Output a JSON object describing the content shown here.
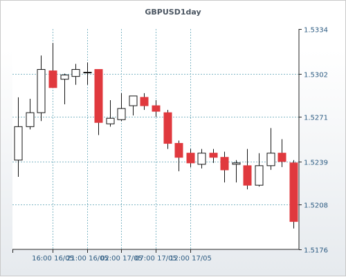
{
  "chart_data": {
    "type": "candlestick",
    "title": "GBPUSD1day",
    "x_tick_labels": [
      "16:00 16/05",
      "21:00 16/05",
      "02:00 17/05",
      "07:00 17/05",
      "12:00 17/05"
    ],
    "y_tick_labels": [
      "1.5334",
      "1.5302",
      "1.5271",
      "1.5239",
      "1.5208",
      "1.5176"
    ],
    "y_ticks": [
      1.5334,
      1.5302,
      1.5271,
      1.5239,
      1.5208,
      1.5176
    ],
    "ylim": [
      1.5176,
      1.5334
    ],
    "grid": true,
    "colors": {
      "up": "#ffffff",
      "down": "#e0393e",
      "wick": "#111111",
      "grid": "#7fb6c4",
      "axis": "#222222",
      "label": "#2c5b82",
      "title": "#4a5561"
    },
    "candles": [
      {
        "open": 1.524,
        "high": 1.5285,
        "low": 1.5228,
        "close": 1.5264
      },
      {
        "open": 1.5264,
        "high": 1.5284,
        "low": 1.5262,
        "close": 1.5274
      },
      {
        "open": 1.5274,
        "high": 1.5315,
        "low": 1.5268,
        "close": 1.5305
      },
      {
        "open": 1.5304,
        "high": 1.5324,
        "low": 1.5292,
        "close": 1.5292
      },
      {
        "open": 1.5298,
        "high": 1.5302,
        "low": 1.528,
        "close": 1.5301
      },
      {
        "open": 1.53,
        "high": 1.5309,
        "low": 1.5294,
        "close": 1.5305
      },
      {
        "open": 1.5303,
        "high": 1.531,
        "low": 1.5294,
        "close": 1.5303
      },
      {
        "open": 1.5305,
        "high": 1.5305,
        "low": 1.5258,
        "close": 1.5267
      },
      {
        "open": 1.5266,
        "high": 1.5283,
        "low": 1.5264,
        "close": 1.527
      },
      {
        "open": 1.5269,
        "high": 1.5288,
        "low": 1.5268,
        "close": 1.5277
      },
      {
        "open": 1.5279,
        "high": 1.5286,
        "low": 1.5272,
        "close": 1.5286
      },
      {
        "open": 1.5285,
        "high": 1.5288,
        "low": 1.5276,
        "close": 1.5279
      },
      {
        "open": 1.5279,
        "high": 1.5283,
        "low": 1.5271,
        "close": 1.5275
      },
      {
        "open": 1.5274,
        "high": 1.5276,
        "low": 1.5248,
        "close": 1.5252
      },
      {
        "open": 1.5252,
        "high": 1.5254,
        "low": 1.5232,
        "close": 1.5242
      },
      {
        "open": 1.5245,
        "high": 1.5248,
        "low": 1.5235,
        "close": 1.5238
      },
      {
        "open": 1.5237,
        "high": 1.5248,
        "low": 1.5234,
        "close": 1.5245
      },
      {
        "open": 1.5245,
        "high": 1.5248,
        "low": 1.5238,
        "close": 1.5242
      },
      {
        "open": 1.5242,
        "high": 1.5246,
        "low": 1.5224,
        "close": 1.5233
      },
      {
        "open": 1.5237,
        "high": 1.524,
        "low": 1.5224,
        "close": 1.5238
      },
      {
        "open": 1.5236,
        "high": 1.5248,
        "low": 1.5219,
        "close": 1.5222
      },
      {
        "open": 1.5222,
        "high": 1.5245,
        "low": 1.5221,
        "close": 1.5236
      },
      {
        "open": 1.5236,
        "high": 1.5263,
        "low": 1.5233,
        "close": 1.5245
      },
      {
        "open": 1.5245,
        "high": 1.5255,
        "low": 1.5235,
        "close": 1.5239
      },
      {
        "open": 1.5238,
        "high": 1.524,
        "low": 1.5191,
        "close": 1.5196
      }
    ]
  }
}
